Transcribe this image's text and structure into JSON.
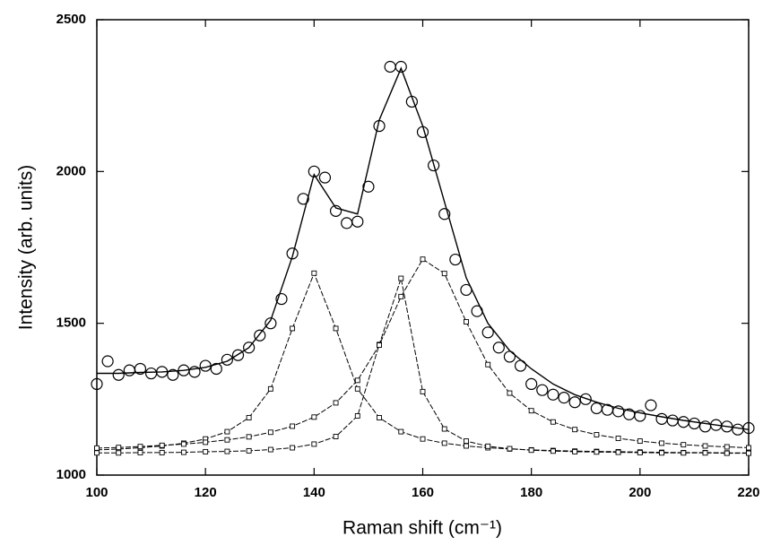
{
  "chart_data": {
    "type": "line",
    "x_label": "Raman shift (cm⁻¹)",
    "y_label": "Intensity (arb. units)",
    "xlim": [
      100,
      220
    ],
    "ylim": [
      1000,
      2500
    ],
    "xticks": [
      100,
      120,
      140,
      160,
      180,
      200,
      220
    ],
    "yticks": [
      1000,
      1500,
      2000,
      2500
    ],
    "series": [
      {
        "style": "markers",
        "marker": "circle",
        "color": "#000000",
        "x": [
          100,
          102,
          104,
          106,
          108,
          110,
          112,
          114,
          116,
          118,
          120,
          122,
          124,
          126,
          128,
          130,
          132,
          134,
          136,
          138,
          140,
          142,
          144,
          146,
          148,
          150,
          152,
          154,
          156,
          158,
          160,
          162,
          164,
          166,
          168,
          170,
          172,
          174,
          176,
          178,
          180,
          182,
          184,
          186,
          188,
          190,
          192,
          194,
          196,
          198,
          200,
          202,
          204,
          206,
          208,
          210,
          212,
          214,
          216,
          218,
          220
        ],
        "values": [
          1300,
          1375,
          1330,
          1345,
          1350,
          1335,
          1340,
          1330,
          1345,
          1340,
          1360,
          1350,
          1380,
          1395,
          1420,
          1460,
          1500,
          1580,
          1730,
          1910,
          2000,
          1980,
          1870,
          1830,
          1835,
          1950,
          2150,
          2345,
          2345,
          2230,
          2130,
          2020,
          1860,
          1710,
          1610,
          1540,
          1470,
          1420,
          1390,
          1360,
          1300,
          1280,
          1265,
          1255,
          1240,
          1250,
          1220,
          1215,
          1210,
          1200,
          1195,
          1230,
          1185,
          1180,
          1175,
          1170,
          1160,
          1165,
          1160,
          1150,
          1155
        ]
      },
      {
        "style": "line",
        "color": "#000000",
        "x": [
          100,
          104,
          108,
          112,
          116,
          120,
          124,
          128,
          132,
          136,
          140,
          144,
          148,
          152,
          156,
          160,
          164,
          168,
          172,
          176,
          180,
          184,
          188,
          192,
          196,
          200,
          204,
          208,
          212,
          216,
          220
        ],
        "values": [
          1335,
          1335,
          1338,
          1340,
          1345,
          1355,
          1375,
          1420,
          1510,
          1720,
          1990,
          1880,
          1860,
          2170,
          2340,
          2150,
          1900,
          1650,
          1500,
          1410,
          1350,
          1300,
          1265,
          1240,
          1220,
          1205,
          1192,
          1180,
          1170,
          1160,
          1150
        ]
      },
      {
        "style": "line-markers",
        "marker": "square",
        "color": "#000000",
        "x": [
          100,
          104,
          108,
          112,
          116,
          120,
          124,
          128,
          132,
          136,
          140,
          144,
          148,
          152,
          156,
          160,
          164,
          168,
          172,
          176,
          180,
          184,
          188,
          192,
          196,
          200,
          204,
          208,
          212,
          216,
          220
        ],
        "values": [
          1083,
          1086,
          1090,
          1096,
          1105,
          1119,
          1143,
          1189,
          1284,
          1483,
          1665,
          1483,
          1284,
          1189,
          1143,
          1119,
          1105,
          1096,
          1090,
          1086,
          1083,
          1081,
          1079,
          1078,
          1077,
          1076,
          1075,
          1074,
          1074,
          1073,
          1073
        ]
      },
      {
        "style": "line-markers",
        "marker": "square",
        "color": "#000000",
        "x": [
          100,
          104,
          108,
          112,
          116,
          120,
          124,
          128,
          132,
          136,
          140,
          144,
          148,
          152,
          156,
          160,
          164,
          168,
          172,
          176,
          180,
          184,
          188,
          192,
          196,
          200,
          204,
          208,
          212,
          216,
          220
        ],
        "values": [
          1073,
          1073,
          1074,
          1074,
          1075,
          1077,
          1078,
          1080,
          1084,
          1090,
          1102,
          1127,
          1195,
          1430,
          1648,
          1275,
          1152,
          1112,
          1095,
          1087,
          1082,
          1079,
          1077,
          1076,
          1075,
          1074,
          1073,
          1073,
          1073,
          1072,
          1072
        ]
      },
      {
        "style": "line-markers",
        "marker": "square",
        "color": "#000000",
        "x": [
          100,
          104,
          108,
          112,
          116,
          120,
          124,
          128,
          132,
          136,
          140,
          144,
          148,
          152,
          156,
          160,
          164,
          168,
          172,
          176,
          180,
          184,
          188,
          192,
          196,
          200,
          204,
          208,
          212,
          216,
          220
        ],
        "values": [
          1089,
          1091,
          1094,
          1098,
          1102,
          1108,
          1116,
          1126,
          1141,
          1161,
          1191,
          1238,
          1312,
          1428,
          1588,
          1711,
          1664,
          1505,
          1364,
          1270,
          1212,
          1175,
          1150,
          1133,
          1121,
          1112,
          1105,
          1100,
          1096,
          1093,
          1090
        ]
      }
    ]
  }
}
